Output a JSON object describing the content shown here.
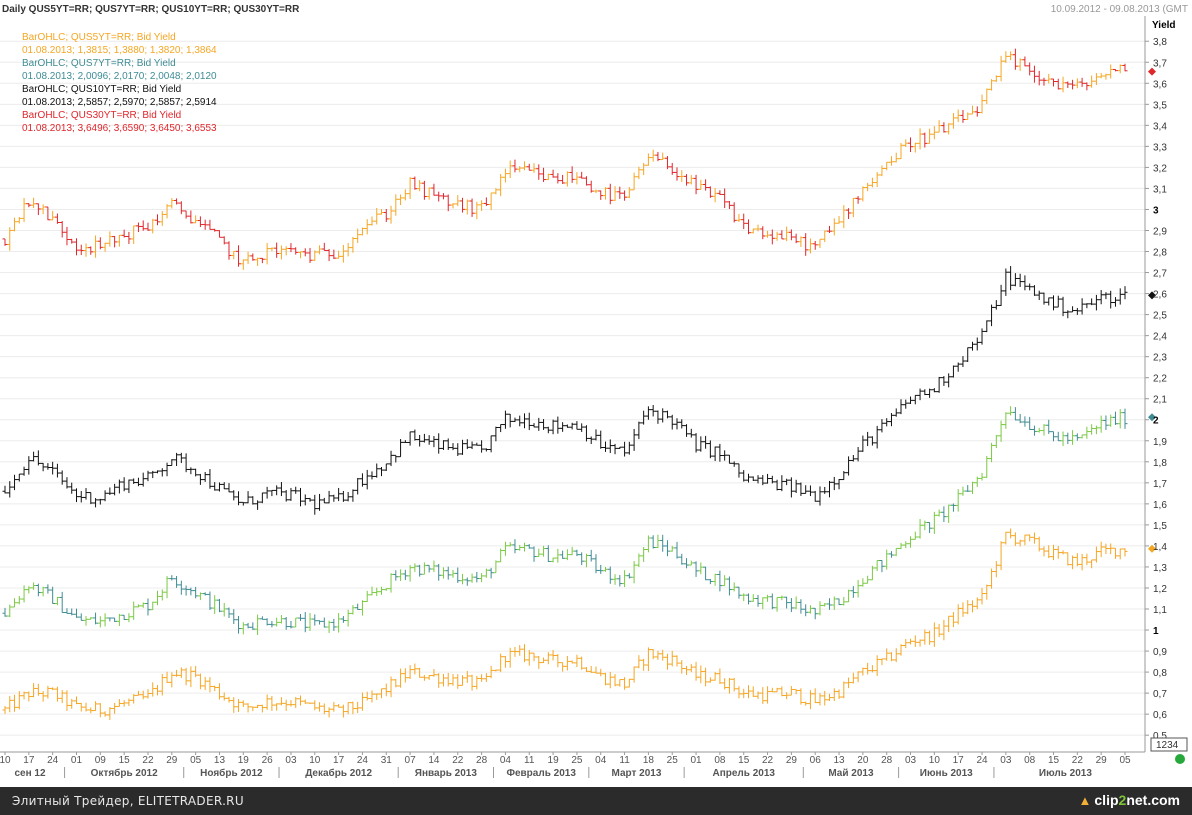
{
  "header": {
    "left": "Daily QUS5YT=RR; QUS7YT=RR; QUS10YT=RR; QUS30YT=RR",
    "right": "10.09.2012 - 09.08.2013 (GMT"
  },
  "legend": [
    {
      "title": "BarOHLC; QUS5YT=RR; Bid Yield",
      "values": "01.08.2013; 1,3815; 1,3880; 1,3820; 1,3864",
      "color": "#f5a623"
    },
    {
      "title": "BarOHLC; QUS7YT=RR; Bid Yield",
      "values": "01.08.2013; 2,0096; 2,0170; 2,0048; 2,0120",
      "color": "#3f8c94"
    },
    {
      "title": "BarOHLC; QUS10YT=RR; Bid Yield",
      "values": "01.08.2013; 2,5857; 2,5970; 2,5857; 2,5914",
      "color": "#111111"
    },
    {
      "title": "BarOHLC; QUS30YT=RR; Bid Yield",
      "values": "01.08.2013; 3,6496; 3,6590; 3,6450; 3,6553",
      "color": "#e0262b"
    }
  ],
  "footer": {
    "text": "Элитный Трейдер, ELITETRADER.RU",
    "logo_prefix": "clip",
    "logo_two": "2",
    "logo_suffix": "net.com"
  },
  "chart_data": {
    "type": "ohlc",
    "ylabel": "Yield",
    "ylim": [
      0.42,
      3.92
    ],
    "yticks": [
      "3,8",
      "3,7",
      "3,6",
      "3,5",
      "3,4",
      "3,3",
      "3,2",
      "3,1",
      "3",
      "2,9",
      "2,8",
      "2,7",
      "2,6",
      "2,5",
      "2,4",
      "2,3",
      "2,2",
      "2,1",
      "2",
      "1,9",
      "1,8",
      "1,7",
      "1,6",
      "1,5",
      "1,4",
      "1,3",
      "1,2",
      "1,1",
      "1",
      "0,9",
      "0,8",
      "0,7",
      "0,6",
      "0,5"
    ],
    "ytick_values": [
      3.8,
      3.7,
      3.6,
      3.5,
      3.4,
      3.3,
      3.2,
      3.1,
      3.0,
      2.9,
      2.8,
      2.7,
      2.6,
      2.5,
      2.4,
      2.3,
      2.2,
      2.1,
      2.0,
      1.9,
      1.8,
      1.7,
      1.6,
      1.5,
      1.4,
      1.3,
      1.2,
      1.1,
      1.0,
      0.9,
      0.8,
      0.7,
      0.6,
      0.5
    ],
    "y_corner_label": "1234",
    "x_day_ticks": [
      "10",
      "17",
      "24",
      "01",
      "09",
      "15",
      "22",
      "29",
      "05",
      "13",
      "19",
      "26",
      "03",
      "10",
      "17",
      "24",
      "31",
      "07",
      "14",
      "22",
      "28",
      "04",
      "11",
      "19",
      "25",
      "04",
      "11",
      "18",
      "25",
      "01",
      "08",
      "15",
      "22",
      "29",
      "06",
      "13",
      "20",
      "28",
      "03",
      "10",
      "17",
      "24",
      "03",
      "08",
      "15",
      "22",
      "29",
      "05"
    ],
    "x_months": [
      "сен 12",
      "Октябрь 2012",
      "Ноябрь 2012",
      "Декабрь 2012",
      "Январь 2013",
      "Февраль 2013",
      "Март 2013",
      "Апрель 2013",
      "Май 2013",
      "Июнь 2013",
      "Июль 2013"
    ],
    "x_dates": [
      "2012-09-10",
      "2012-09-17",
      "2012-09-24",
      "2012-10-01",
      "2012-10-09",
      "2012-10-15",
      "2012-10-22",
      "2012-10-29",
      "2012-11-05",
      "2012-11-13",
      "2012-11-19",
      "2012-11-26",
      "2012-12-03",
      "2012-12-10",
      "2012-12-17",
      "2012-12-24",
      "2012-12-31",
      "2013-01-07",
      "2013-01-14",
      "2013-01-22",
      "2013-01-28",
      "2013-02-04",
      "2013-02-11",
      "2013-02-19",
      "2013-02-25",
      "2013-03-04",
      "2013-03-11",
      "2013-03-18",
      "2013-03-25",
      "2013-04-01",
      "2013-04-08",
      "2013-04-15",
      "2013-04-22",
      "2013-04-29",
      "2013-05-06",
      "2013-05-13",
      "2013-05-20",
      "2013-05-28",
      "2013-06-03",
      "2013-06-10",
      "2013-06-17",
      "2013-06-24",
      "2013-07-01",
      "2013-07-08",
      "2013-07-15",
      "2013-07-22",
      "2013-07-29",
      "2013-08-05"
    ],
    "series": [
      {
        "name": "QUS5YT=RR",
        "color_up": "#f5a623",
        "color_down": "#f5a623",
        "last": 1.3864,
        "marker_color": "#f5a623",
        "weekly_close": [
          0.62,
          0.7,
          0.7,
          0.63,
          0.62,
          0.65,
          0.68,
          0.8,
          0.78,
          0.7,
          0.63,
          0.66,
          0.66,
          0.63,
          0.61,
          0.65,
          0.72,
          0.8,
          0.78,
          0.76,
          0.74,
          0.88,
          0.88,
          0.85,
          0.86,
          0.78,
          0.74,
          0.89,
          0.86,
          0.78,
          0.77,
          0.7,
          0.69,
          0.7,
          0.66,
          0.71,
          0.8,
          0.86,
          0.95,
          0.98,
          1.08,
          1.15,
          1.45,
          1.42,
          1.36,
          1.32,
          1.37,
          1.39
        ]
      },
      {
        "name": "QUS7YT=RR",
        "color_up": "#7ac943",
        "color_down": "#3f8c94",
        "last": 2.012,
        "marker_color": "#3f8c94",
        "weekly_close": [
          1.08,
          1.22,
          1.15,
          1.05,
          1.04,
          1.08,
          1.12,
          1.25,
          1.18,
          1.1,
          1.02,
          1.05,
          1.04,
          1.02,
          1.04,
          1.12,
          1.22,
          1.3,
          1.28,
          1.26,
          1.24,
          1.38,
          1.38,
          1.35,
          1.36,
          1.28,
          1.24,
          1.42,
          1.38,
          1.28,
          1.24,
          1.16,
          1.14,
          1.12,
          1.08,
          1.14,
          1.25,
          1.34,
          1.45,
          1.52,
          1.62,
          1.75,
          2.05,
          1.98,
          1.92,
          1.9,
          1.98,
          2.01
        ]
      },
      {
        "name": "QUS10YT=RR",
        "color_up": "#111111",
        "color_down": "#111111",
        "last": 2.5914,
        "marker_color": "#111111",
        "weekly_close": [
          1.66,
          1.82,
          1.75,
          1.64,
          1.63,
          1.7,
          1.72,
          1.82,
          1.76,
          1.67,
          1.6,
          1.65,
          1.64,
          1.6,
          1.62,
          1.72,
          1.8,
          1.92,
          1.88,
          1.86,
          1.85,
          2.0,
          2.0,
          1.97,
          1.98,
          1.88,
          1.84,
          2.05,
          2.0,
          1.88,
          1.84,
          1.72,
          1.7,
          1.68,
          1.64,
          1.74,
          1.88,
          1.98,
          2.1,
          2.15,
          2.28,
          2.4,
          2.68,
          2.62,
          2.55,
          2.52,
          2.58,
          2.59
        ]
      },
      {
        "name": "QUS30YT=RR",
        "color_up": "#f5a623",
        "color_down": "#e0262b",
        "last": 3.6553,
        "marker_color": "#e0262b",
        "weekly_close": [
          2.86,
          3.05,
          2.95,
          2.83,
          2.82,
          2.88,
          2.92,
          3.02,
          2.95,
          2.85,
          2.74,
          2.8,
          2.8,
          2.78,
          2.8,
          2.92,
          2.98,
          3.12,
          3.06,
          3.02,
          3.0,
          3.18,
          3.18,
          3.14,
          3.16,
          3.08,
          3.05,
          3.25,
          3.2,
          3.1,
          3.05,
          2.92,
          2.88,
          2.86,
          2.82,
          2.95,
          3.1,
          3.22,
          3.32,
          3.36,
          3.42,
          3.5,
          3.72,
          3.66,
          3.6,
          3.58,
          3.64,
          3.66
        ]
      }
    ]
  }
}
